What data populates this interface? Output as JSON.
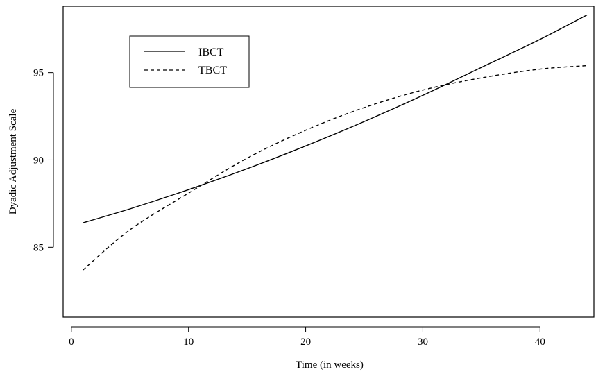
{
  "chart_data": {
    "type": "line",
    "title": "",
    "xlabel": "Time (in weeks)",
    "ylabel": "Dyadic Adjustment Scale",
    "xlim": [
      -0.7,
      44.6
    ],
    "ylim": [
      81.0,
      98.8
    ],
    "xticks": [
      0,
      10,
      20,
      30,
      40
    ],
    "yticks": [
      85,
      90,
      95
    ],
    "grid": false,
    "legend_position": "top-left",
    "series": [
      {
        "name": "IBCT",
        "linestyle": "solid",
        "x": [
          1,
          5,
          10,
          15,
          20,
          25,
          30,
          35,
          40,
          44
        ],
        "y": [
          86.4,
          87.2,
          88.3,
          89.5,
          90.8,
          92.2,
          93.7,
          95.3,
          96.9,
          98.3
        ]
      },
      {
        "name": "TBCT",
        "linestyle": "dashed",
        "x": [
          1,
          5,
          10,
          15,
          20,
          25,
          30,
          35,
          40,
          44
        ],
        "y": [
          83.7,
          86.0,
          88.1,
          90.1,
          91.7,
          93.0,
          94.0,
          94.7,
          95.2,
          95.4
        ]
      }
    ]
  }
}
